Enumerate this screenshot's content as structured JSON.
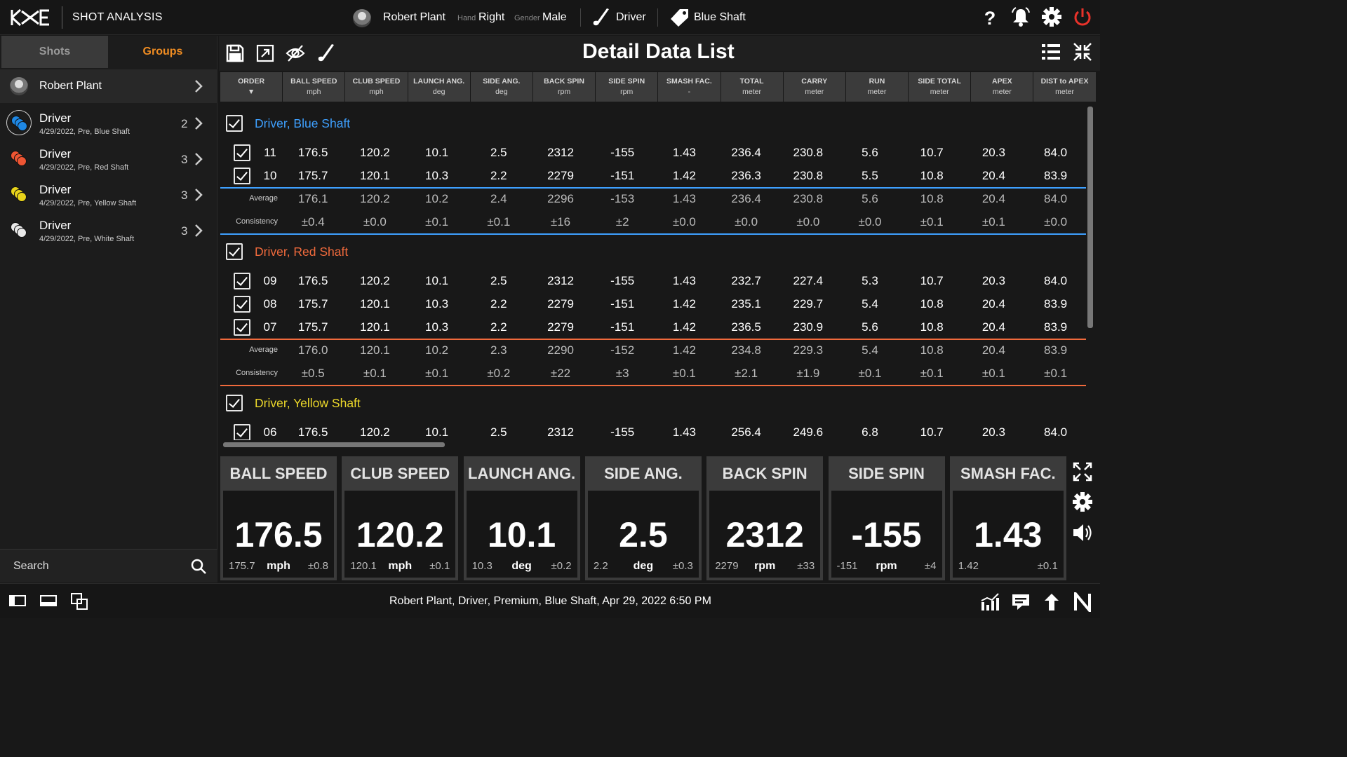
{
  "app": {
    "title": "SHOT ANALYSIS"
  },
  "player": {
    "name": "Robert Plant",
    "hand_label": "Hand",
    "hand": "Right",
    "gender_label": "Gender",
    "gender": "Male"
  },
  "club": {
    "name": "Driver",
    "shaft": "Blue Shaft"
  },
  "left_tabs": {
    "shots": "Shots",
    "groups": "Groups"
  },
  "left_player": "Robert Plant",
  "groups": [
    {
      "title": "Driver",
      "subtitle": "4/29/2022, Pre, Blue Shaft",
      "count": "2",
      "color": "#1e88e5"
    },
    {
      "title": "Driver",
      "subtitle": "4/29/2022, Pre, Red Shaft",
      "count": "3",
      "color": "#ee5533"
    },
    {
      "title": "Driver",
      "subtitle": "4/29/2022, Pre, Yellow Shaft",
      "count": "3",
      "color": "#e8d31a"
    },
    {
      "title": "Driver",
      "subtitle": "4/29/2022, Pre, White Shaft",
      "count": "3",
      "color": "#e8e8e8"
    }
  ],
  "search": {
    "label": "Search"
  },
  "main": {
    "title": "Detail Data List"
  },
  "columns": [
    {
      "name": "ORDER",
      "unit": "▼"
    },
    {
      "name": "BALL SPEED",
      "unit": "mph"
    },
    {
      "name": "CLUB SPEED",
      "unit": "mph"
    },
    {
      "name": "LAUNCH ANG.",
      "unit": "deg"
    },
    {
      "name": "SIDE ANG.",
      "unit": "deg"
    },
    {
      "name": "BACK SPIN",
      "unit": "rpm"
    },
    {
      "name": "SIDE SPIN",
      "unit": "rpm"
    },
    {
      "name": "SMASH FAC.",
      "unit": "-"
    },
    {
      "name": "TOTAL",
      "unit": "meter"
    },
    {
      "name": "CARRY",
      "unit": "meter"
    },
    {
      "name": "RUN",
      "unit": "meter"
    },
    {
      "name": "SIDE TOTAL",
      "unit": "meter"
    },
    {
      "name": "APEX",
      "unit": "meter"
    },
    {
      "name": "DIST to APEX",
      "unit": "meter"
    }
  ],
  "table_groups": [
    {
      "title": "Driver, Blue Shaft",
      "color": "#3ea0ff",
      "rows": [
        [
          "11",
          "176.5",
          "120.2",
          "10.1",
          "2.5",
          "2312",
          "-155",
          "1.43",
          "236.4",
          "230.8",
          "5.6",
          "10.7",
          "20.3",
          "84.0"
        ],
        [
          "10",
          "175.7",
          "120.1",
          "10.3",
          "2.2",
          "2279",
          "-151",
          "1.42",
          "236.3",
          "230.8",
          "5.5",
          "10.8",
          "20.4",
          "83.9"
        ]
      ],
      "average_label": "Average",
      "average": [
        "176.1",
        "120.2",
        "10.2",
        "2.4",
        "2296",
        "-153",
        "1.43",
        "236.4",
        "230.8",
        "5.6",
        "10.8",
        "20.4",
        "84.0"
      ],
      "consistency_label": "Consistency",
      "consistency": [
        "±0.4",
        "±0.0",
        "±0.1",
        "±0.1",
        "±16",
        "±2",
        "±0.0",
        "±0.0",
        "±0.0",
        "±0.0",
        "±0.1",
        "±0.1",
        "±0.0"
      ]
    },
    {
      "title": "Driver, Red Shaft",
      "color": "#f06a3c",
      "rows": [
        [
          "09",
          "176.5",
          "120.2",
          "10.1",
          "2.5",
          "2312",
          "-155",
          "1.43",
          "232.7",
          "227.4",
          "5.3",
          "10.7",
          "20.3",
          "84.0"
        ],
        [
          "08",
          "175.7",
          "120.1",
          "10.3",
          "2.2",
          "2279",
          "-151",
          "1.42",
          "235.1",
          "229.7",
          "5.4",
          "10.8",
          "20.4",
          "83.9"
        ],
        [
          "07",
          "175.7",
          "120.1",
          "10.3",
          "2.2",
          "2279",
          "-151",
          "1.42",
          "236.5",
          "230.9",
          "5.6",
          "10.8",
          "20.4",
          "83.9"
        ]
      ],
      "average_label": "Average",
      "average": [
        "176.0",
        "120.1",
        "10.2",
        "2.3",
        "2290",
        "-152",
        "1.42",
        "234.8",
        "229.3",
        "5.4",
        "10.8",
        "20.4",
        "83.9"
      ],
      "consistency_label": "Consistency",
      "consistency": [
        "±0.5",
        "±0.1",
        "±0.1",
        "±0.2",
        "±22",
        "±3",
        "±0.1",
        "±2.1",
        "±1.9",
        "±0.1",
        "±0.1",
        "±0.1",
        "±0.1"
      ]
    },
    {
      "title": "Driver, Yellow Shaft",
      "color": "#ecd82a",
      "rows": [
        [
          "06",
          "176.5",
          "120.2",
          "10.1",
          "2.5",
          "2312",
          "-155",
          "1.43",
          "256.4",
          "249.6",
          "6.8",
          "10.7",
          "20.3",
          "84.0"
        ]
      ]
    }
  ],
  "cards": [
    {
      "title": "BALL SPEED",
      "value": "176.5",
      "prev": "175.7",
      "unit": "mph",
      "cons": "±0.8"
    },
    {
      "title": "CLUB SPEED",
      "value": "120.2",
      "prev": "120.1",
      "unit": "mph",
      "cons": "±0.1"
    },
    {
      "title": "LAUNCH ANG.",
      "value": "10.1",
      "prev": "10.3",
      "unit": "deg",
      "cons": "±0.2"
    },
    {
      "title": "SIDE ANG.",
      "value": "2.5",
      "prev": "2.2",
      "unit": "deg",
      "cons": "±0.3"
    },
    {
      "title": "BACK SPIN",
      "value": "2312",
      "prev": "2279",
      "unit": "rpm",
      "cons": "±33"
    },
    {
      "title": "SIDE SPIN",
      "value": "-155",
      "prev": "-151",
      "unit": "rpm",
      "cons": "±4"
    },
    {
      "title": "SMASH FAC.",
      "value": "1.43",
      "prev": "1.42",
      "unit": "",
      "cons": "±0.1"
    }
  ],
  "status_bar": {
    "text": "Robert Plant, Driver, Premium, Blue Shaft, Apr 29, 2022 6:50 PM"
  }
}
